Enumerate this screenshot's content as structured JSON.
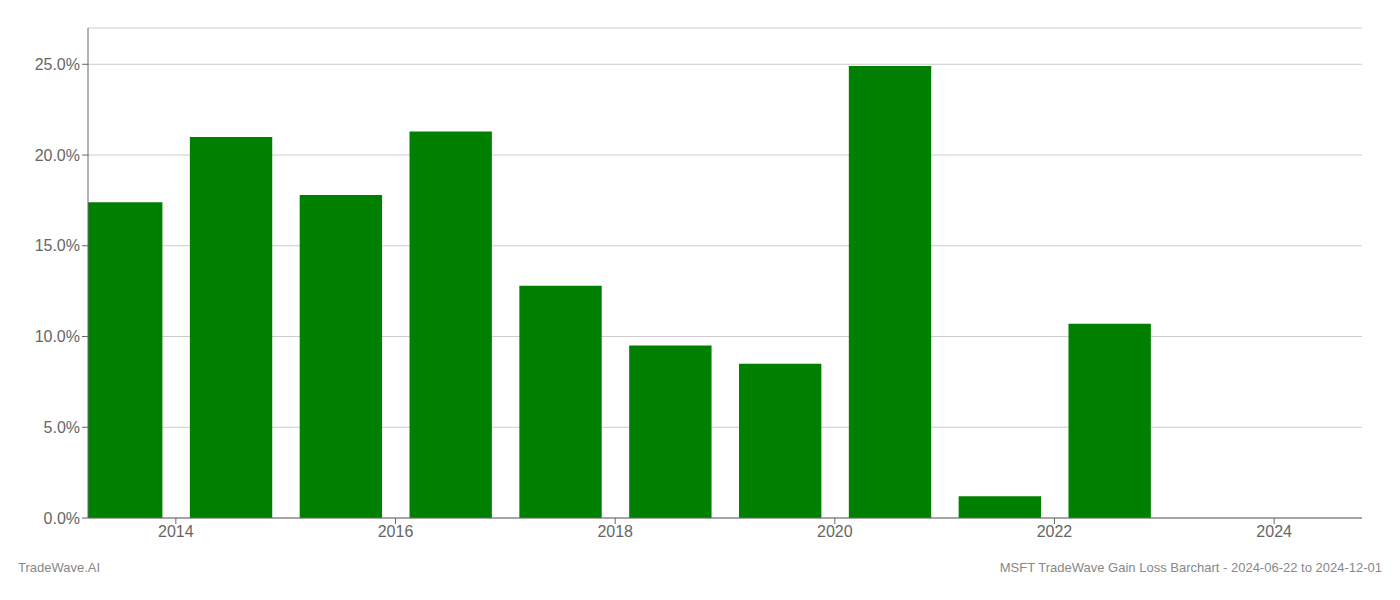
{
  "chart_data": {
    "type": "bar",
    "x": [
      2013,
      2014,
      2015,
      2016,
      2017,
      2018,
      2019,
      2020,
      2021,
      2022,
      2023
    ],
    "values": [
      0.174,
      0.21,
      0.178,
      0.213,
      0.128,
      0.095,
      0.085,
      0.249,
      0.012,
      0.107,
      0.0
    ],
    "color": "#008000",
    "xlim": [
      2012.7,
      2024.3
    ],
    "xticks": [
      {
        "value": 2013.5,
        "label": "2014"
      },
      {
        "value": 2015.5,
        "label": "2016"
      },
      {
        "value": 2017.5,
        "label": "2018"
      },
      {
        "value": 2019.5,
        "label": "2020"
      },
      {
        "value": 2021.5,
        "label": "2022"
      },
      {
        "value": 2023.5,
        "label": "2024"
      }
    ],
    "ylim": [
      0,
      0.27
    ],
    "yticks": [
      {
        "value": 0.0,
        "label": "0.0%"
      },
      {
        "value": 0.05,
        "label": "5.0%"
      },
      {
        "value": 0.1,
        "label": "10.0%"
      },
      {
        "value": 0.15,
        "label": "15.0%"
      },
      {
        "value": 0.2,
        "label": "20.0%"
      },
      {
        "value": 0.25,
        "label": "25.0%"
      }
    ],
    "grid": "y",
    "annotations": [
      "TradeWave.AI",
      "MSFT TradeWave Gain Loss Barchart - 2024-06-22 to 2024-12-01"
    ]
  }
}
